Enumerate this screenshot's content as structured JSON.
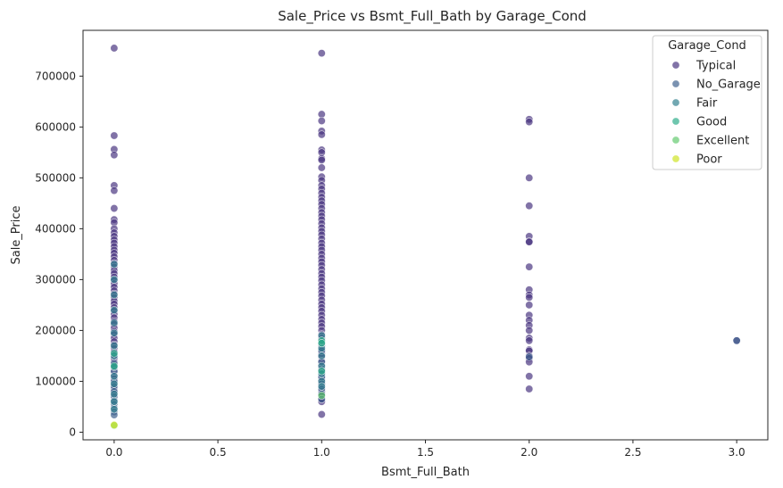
{
  "chart_data": {
    "type": "scatter",
    "title": "Sale_Price vs Bsmt_Full_Bath by Garage_Cond",
    "xlabel": "Bsmt_Full_Bath",
    "ylabel": "Sale_Price",
    "xlim": [
      -0.15,
      3.15
    ],
    "ylim": [
      -15000,
      790000
    ],
    "xticks": [
      0.0,
      0.5,
      1.0,
      1.5,
      2.0,
      2.5,
      3.0
    ],
    "xtick_labels": [
      "0.0",
      "0.5",
      "1.0",
      "1.5",
      "2.0",
      "2.5",
      "3.0"
    ],
    "yticks": [
      0,
      100000,
      200000,
      300000,
      400000,
      500000,
      600000,
      700000
    ],
    "ytick_labels": [
      "0",
      "100000",
      "200000",
      "300000",
      "400000",
      "500000",
      "600000",
      "700000"
    ],
    "grid": false,
    "legend": {
      "title": "Garage_Cond",
      "placement": "top-right"
    },
    "series": [
      {
        "name": "Typical",
        "color": "#46317e",
        "points": [
          [
            0,
            755000
          ],
          [
            0,
            583000
          ],
          [
            0,
            556000
          ],
          [
            0,
            545000
          ],
          [
            0,
            485000
          ],
          [
            0,
            475000
          ],
          [
            0,
            440000
          ],
          [
            0,
            418000
          ],
          [
            0,
            412000
          ],
          [
            0,
            400000
          ],
          [
            0,
            392000
          ],
          [
            0,
            385000
          ],
          [
            0,
            378000
          ],
          [
            0,
            372000
          ],
          [
            0,
            365000
          ],
          [
            0,
            358000
          ],
          [
            0,
            352000
          ],
          [
            0,
            345000
          ],
          [
            0,
            338000
          ],
          [
            0,
            332000
          ],
          [
            0,
            325000
          ],
          [
            0,
            318000
          ],
          [
            0,
            312000
          ],
          [
            0,
            305000
          ],
          [
            0,
            298000
          ],
          [
            0,
            292000
          ],
          [
            0,
            285000
          ],
          [
            0,
            278000
          ],
          [
            0,
            272000
          ],
          [
            0,
            265000
          ],
          [
            0,
            258000
          ],
          [
            0,
            252000
          ],
          [
            0,
            245000
          ],
          [
            0,
            238000
          ],
          [
            0,
            232000
          ],
          [
            0,
            225000
          ],
          [
            0,
            218000
          ],
          [
            0,
            212000
          ],
          [
            0,
            205000
          ],
          [
            0,
            198000
          ],
          [
            0,
            192000
          ],
          [
            0,
            185000
          ],
          [
            0,
            178000
          ],
          [
            0,
            172000
          ],
          [
            0,
            165000
          ],
          [
            0,
            158000
          ],
          [
            0,
            152000
          ],
          [
            0,
            145000
          ],
          [
            0,
            138000
          ],
          [
            0,
            132000
          ],
          [
            0,
            125000
          ],
          [
            0,
            118000
          ],
          [
            0,
            112000
          ],
          [
            0,
            105000
          ],
          [
            0,
            98000
          ],
          [
            0,
            92000
          ],
          [
            0,
            85000
          ],
          [
            0,
            78000
          ],
          [
            0,
            72000
          ],
          [
            0,
            65000
          ],
          [
            1,
            745000
          ],
          [
            1,
            625000
          ],
          [
            1,
            612000
          ],
          [
            1,
            592000
          ],
          [
            1,
            585000
          ],
          [
            1,
            555000
          ],
          [
            1,
            550000
          ],
          [
            1,
            538000
          ],
          [
            1,
            535000
          ],
          [
            1,
            520000
          ],
          [
            1,
            502000
          ],
          [
            1,
            495000
          ],
          [
            1,
            485000
          ],
          [
            1,
            478000
          ],
          [
            1,
            470000
          ],
          [
            1,
            462000
          ],
          [
            1,
            455000
          ],
          [
            1,
            448000
          ],
          [
            1,
            440000
          ],
          [
            1,
            432000
          ],
          [
            1,
            425000
          ],
          [
            1,
            418000
          ],
          [
            1,
            410000
          ],
          [
            1,
            402000
          ],
          [
            1,
            395000
          ],
          [
            1,
            388000
          ],
          [
            1,
            380000
          ],
          [
            1,
            372000
          ],
          [
            1,
            365000
          ],
          [
            1,
            358000
          ],
          [
            1,
            350000
          ],
          [
            1,
            342000
          ],
          [
            1,
            335000
          ],
          [
            1,
            328000
          ],
          [
            1,
            320000
          ],
          [
            1,
            312000
          ],
          [
            1,
            305000
          ],
          [
            1,
            298000
          ],
          [
            1,
            290000
          ],
          [
            1,
            282000
          ],
          [
            1,
            275000
          ],
          [
            1,
            268000
          ],
          [
            1,
            260000
          ],
          [
            1,
            252000
          ],
          [
            1,
            245000
          ],
          [
            1,
            238000
          ],
          [
            1,
            230000
          ],
          [
            1,
            222000
          ],
          [
            1,
            215000
          ],
          [
            1,
            208000
          ],
          [
            1,
            200000
          ],
          [
            1,
            192000
          ],
          [
            1,
            185000
          ],
          [
            1,
            178000
          ],
          [
            1,
            170000
          ],
          [
            1,
            162000
          ],
          [
            1,
            155000
          ],
          [
            1,
            148000
          ],
          [
            1,
            140000
          ],
          [
            1,
            132000
          ],
          [
            1,
            125000
          ],
          [
            1,
            118000
          ],
          [
            1,
            110000
          ],
          [
            1,
            102000
          ],
          [
            1,
            95000
          ],
          [
            1,
            88000
          ],
          [
            1,
            80000
          ],
          [
            1,
            72000
          ],
          [
            1,
            65000
          ],
          [
            1,
            60000
          ],
          [
            1,
            35000
          ],
          [
            2,
            615000
          ],
          [
            2,
            610000
          ],
          [
            2,
            500000
          ],
          [
            2,
            445000
          ],
          [
            2,
            385000
          ],
          [
            2,
            375000
          ],
          [
            2,
            374000
          ],
          [
            2,
            325000
          ],
          [
            2,
            280000
          ],
          [
            2,
            270000
          ],
          [
            2,
            265000
          ],
          [
            2,
            250000
          ],
          [
            2,
            230000
          ],
          [
            2,
            220000
          ],
          [
            2,
            210000
          ],
          [
            2,
            200000
          ],
          [
            2,
            185000
          ],
          [
            2,
            180000
          ],
          [
            2,
            162000
          ],
          [
            2,
            160000
          ],
          [
            2,
            150000
          ],
          [
            2,
            145000
          ],
          [
            2,
            138000
          ],
          [
            2,
            110000
          ],
          [
            2,
            85000
          ],
          [
            3,
            180000
          ]
        ]
      },
      {
        "name": "No_Garage",
        "color": "#3b5e8c",
        "points": [
          [
            0,
            135000
          ],
          [
            0,
            120000
          ],
          [
            0,
            100000
          ],
          [
            0,
            90000
          ],
          [
            0,
            80000
          ],
          [
            0,
            70000
          ],
          [
            0,
            62000
          ],
          [
            0,
            55000
          ],
          [
            0,
            48000
          ],
          [
            0,
            40000
          ],
          [
            0,
            34000
          ],
          [
            1,
            160000
          ],
          [
            1,
            138000
          ],
          [
            1,
            122000
          ],
          [
            1,
            108000
          ],
          [
            1,
            95000
          ],
          [
            1,
            85000
          ],
          [
            1,
            75000
          ],
          [
            1,
            65000
          ],
          [
            2,
            148000
          ],
          [
            3,
            180000
          ]
        ]
      },
      {
        "name": "Fair",
        "color": "#2f7f8e",
        "points": [
          [
            0,
            330000
          ],
          [
            0,
            300000
          ],
          [
            0,
            270000
          ],
          [
            0,
            240000
          ],
          [
            0,
            215000
          ],
          [
            0,
            195000
          ],
          [
            0,
            170000
          ],
          [
            0,
            150000
          ],
          [
            0,
            128000
          ],
          [
            0,
            110000
          ],
          [
            0,
            95000
          ],
          [
            0,
            75000
          ],
          [
            0,
            60000
          ],
          [
            0,
            45000
          ],
          [
            1,
            190000
          ],
          [
            1,
            175000
          ],
          [
            1,
            165000
          ],
          [
            1,
            150000
          ],
          [
            1,
            130000
          ],
          [
            1,
            115000
          ],
          [
            1,
            100000
          ],
          [
            1,
            90000
          ]
        ]
      },
      {
        "name": "Good",
        "color": "#2aab88",
        "points": [
          [
            0,
            155000
          ],
          [
            0,
            130000
          ],
          [
            1,
            180000
          ],
          [
            1,
            175000
          ],
          [
            1,
            120000
          ]
        ]
      },
      {
        "name": "Excellent",
        "color": "#60c96b",
        "points": [
          [
            0,
            13000
          ],
          [
            1,
            72000
          ]
        ]
      },
      {
        "name": "Poor",
        "color": "#cde31f",
        "points": [
          [
            0,
            14000
          ]
        ]
      }
    ]
  }
}
